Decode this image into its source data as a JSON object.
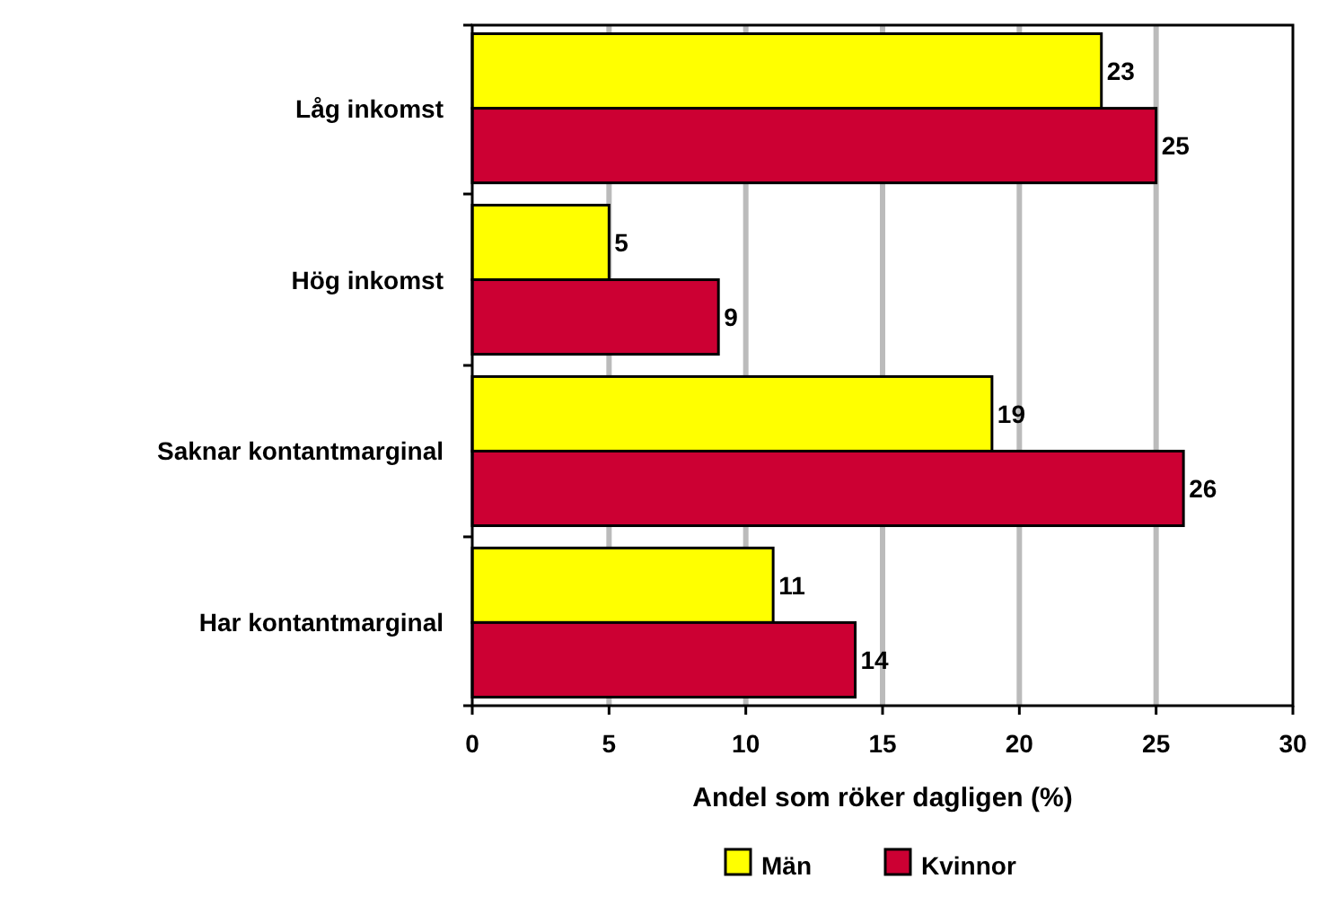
{
  "chart_data": {
    "type": "bar",
    "orientation": "horizontal",
    "xlabel": "Andel som röker dagligen (%)",
    "categories": [
      "Låg inkomst",
      "Hög inkomst",
      "Saknar kontantmarginal",
      "Har kontantmarginal"
    ],
    "series": [
      {
        "name": "Män",
        "color": "#ffff00",
        "values": [
          23,
          5,
          19,
          11
        ]
      },
      {
        "name": "Kvinnor",
        "color": "#cc0033",
        "values": [
          25,
          9,
          26,
          14
        ]
      }
    ],
    "xlim": [
      0,
      30
    ],
    "xticks": [
      0,
      5,
      10,
      15,
      20,
      25,
      30
    ],
    "grid": "x",
    "legend": "bottom",
    "data_labels": true
  }
}
